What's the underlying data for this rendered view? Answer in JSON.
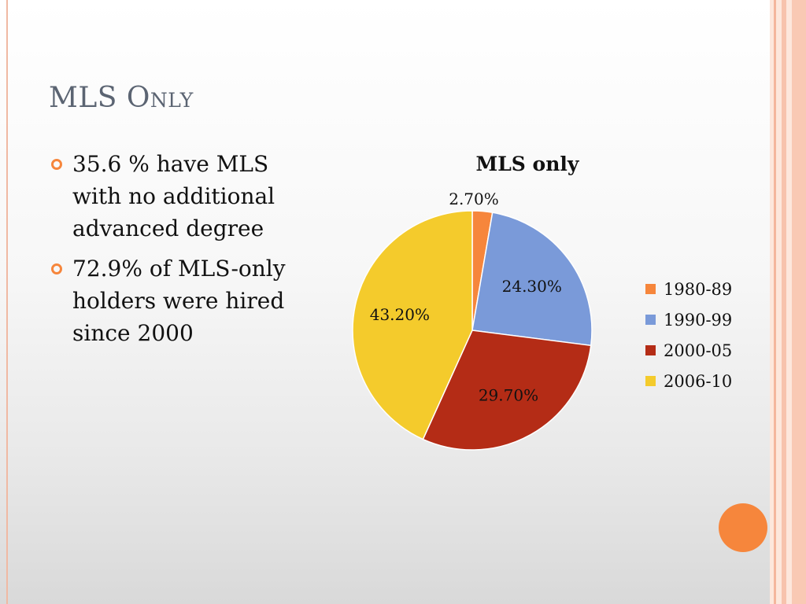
{
  "slide": {
    "title": "MLS Only",
    "bullets": [
      "35.6 % have MLS with no additional advanced degree",
      "72.9% of MLS-only holders were hired since 2000"
    ],
    "colors": {
      "accent": "#f6863c",
      "title": "#5b6472"
    }
  },
  "chart_data": {
    "type": "pie",
    "title": "MLS only",
    "categories": [
      "1980-89",
      "1990-99",
      "2000-05",
      "2006-10"
    ],
    "values": [
      2.7,
      24.3,
      29.7,
      43.2
    ],
    "labels": [
      "2.70%",
      "24.30%",
      "29.70%",
      "43.20%"
    ],
    "colors": [
      "#f6863c",
      "#7a9ad9",
      "#b42c16",
      "#f4cb2c"
    ],
    "legend_position": "right"
  }
}
